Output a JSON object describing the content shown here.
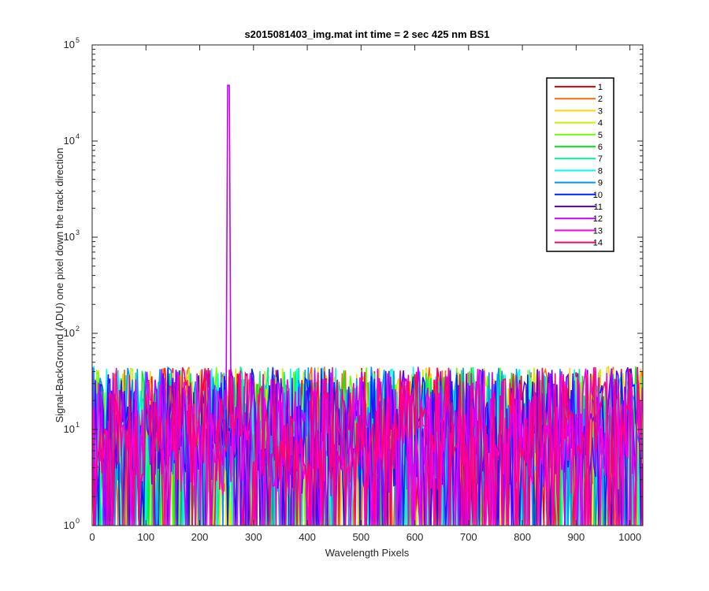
{
  "chart_data": {
    "type": "line",
    "title": "s2015081403_img.mat int time = 2 sec  425 nm BS1",
    "xlabel": "Wavelength Pixels",
    "ylabel": "Signal-BackGround (ADU) one pixel down the track direction",
    "xlim": [
      0,
      1024
    ],
    "ylim": [
      1,
      100000
    ],
    "yscale": "log",
    "grid": false,
    "legend_position": "top-right",
    "x_ticks": [
      0,
      100,
      200,
      300,
      400,
      500,
      600,
      700,
      800,
      900,
      1000
    ],
    "y_ticks": [
      {
        "base": "10",
        "exp": "0",
        "value": 1
      },
      {
        "base": "10",
        "exp": "1",
        "value": 10
      },
      {
        "base": "10",
        "exp": "2",
        "value": 100
      },
      {
        "base": "10",
        "exp": "3",
        "value": 1000
      },
      {
        "base": "10",
        "exp": "4",
        "value": 10000
      },
      {
        "base": "10",
        "exp": "5",
        "value": 100000
      }
    ],
    "noise_floor_range": [
      1,
      50
    ],
    "peak": {
      "x": 253,
      "y": 38000,
      "series": "12"
    },
    "series": [
      {
        "name": "1",
        "color": "#ff0000"
      },
      {
        "name": "2",
        "color": "#ff6a00"
      },
      {
        "name": "3",
        "color": "#ffd500"
      },
      {
        "name": "4",
        "color": "#c8f000"
      },
      {
        "name": "5",
        "color": "#6aff00"
      },
      {
        "name": "6",
        "color": "#00f020"
      },
      {
        "name": "7",
        "color": "#00f090"
      },
      {
        "name": "8",
        "color": "#00ffea"
      },
      {
        "name": "9",
        "color": "#0095ff"
      },
      {
        "name": "10",
        "color": "#0020ff"
      },
      {
        "name": "11",
        "color": "#5a00ff"
      },
      {
        "name": "12",
        "color": "#c000ff"
      },
      {
        "name": "13",
        "color": "#ff00dc"
      },
      {
        "name": "14",
        "color": "#ff0070"
      }
    ]
  }
}
